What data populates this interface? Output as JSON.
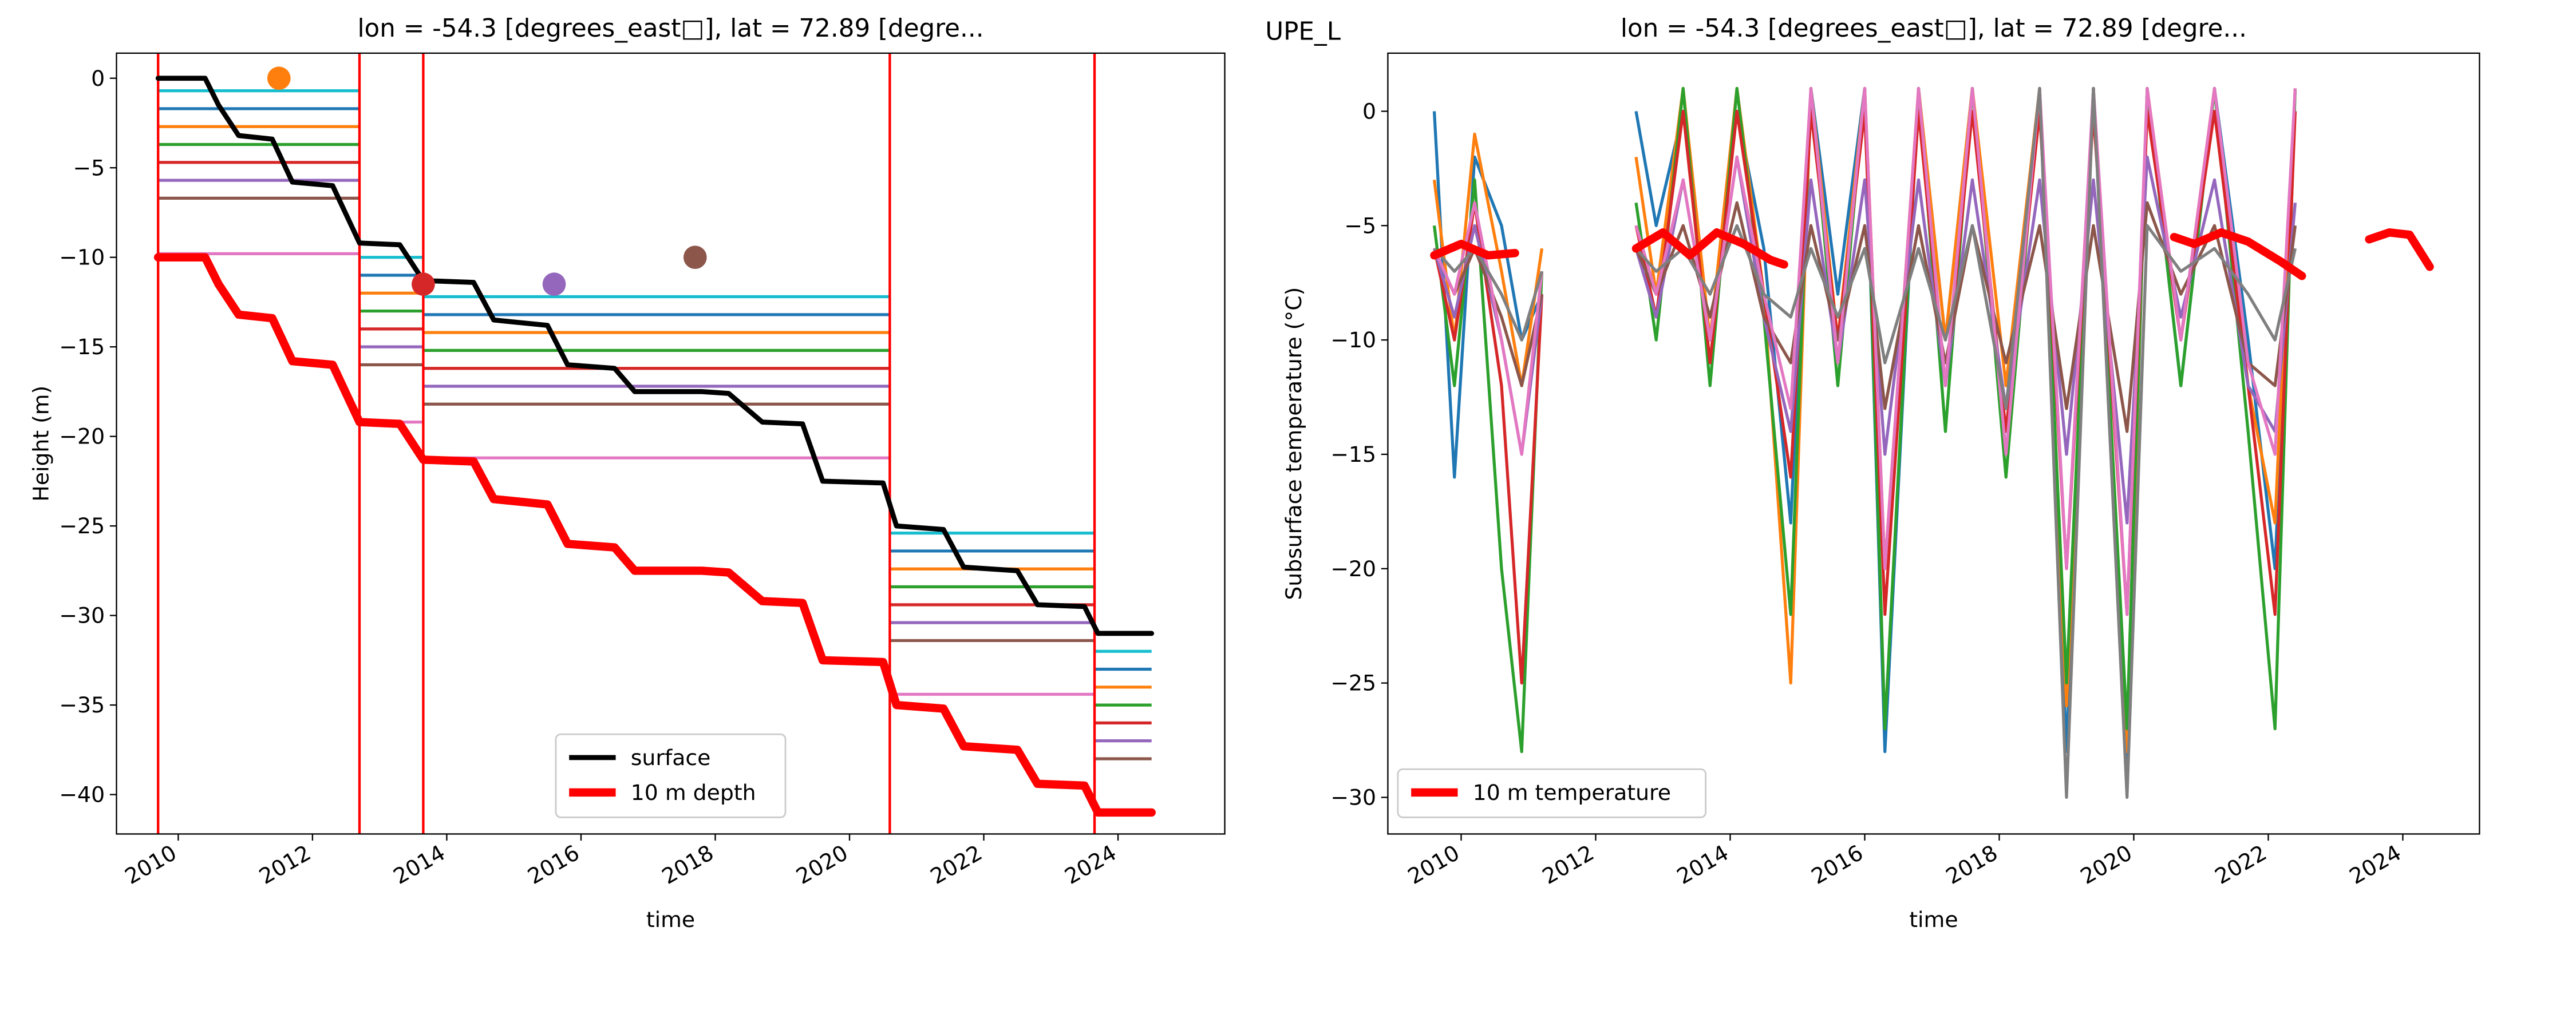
{
  "site": "UPE_L",
  "chart_data": [
    {
      "type": "line",
      "title": "lon = -54.3 [degrees_east□], lat = 72.89 [degre...",
      "x_label": "time",
      "y_label": "Height (m)",
      "xlim": [
        2009.08,
        2025.59
      ],
      "ylim": [
        -42.2,
        1.4
      ],
      "xticks": [
        2010,
        2012,
        2014,
        2016,
        2018,
        2020,
        2022,
        2024
      ],
      "yticks": [
        0,
        {
          "value": -5,
          "label": "−5"
        },
        {
          "value": -10,
          "label": "−10"
        },
        {
          "value": -15,
          "label": "−15"
        },
        {
          "value": -20,
          "label": "−20"
        },
        {
          "value": -25,
          "label": "−25"
        },
        {
          "value": -30,
          "label": "−30"
        },
        {
          "value": -35,
          "label": "−35"
        },
        {
          "value": -40,
          "label": "−40"
        }
      ],
      "legend": "lower center",
      "x": [
        2009.7,
        2010.4,
        2010.6,
        2010.9,
        2011.4,
        2011.7,
        2012.3,
        2012.7,
        2013.3,
        2013.65,
        2014.4,
        2014.7,
        2015.5,
        2015.8,
        2016.5,
        2016.8,
        2017.8,
        2018.2,
        2018.7,
        2019.3,
        2019.6,
        2020.5,
        2020.7,
        2021.4,
        2021.7,
        2022.5,
        2022.8,
        2023.5,
        2023.7,
        2024.5
      ],
      "series": [
        {
          "name": "surface",
          "color": "#000000",
          "width": 3,
          "values": [
            0,
            0,
            -1.5,
            -3.2,
            -3.4,
            -5.8,
            -6,
            -9.2,
            -9.3,
            -11.3,
            -11.4,
            -13.5,
            -13.8,
            -16,
            -16.2,
            -17.5,
            -17.5,
            -17.6,
            -19.2,
            -19.3,
            -22.5,
            -22.6,
            -25,
            -25.2,
            -27.3,
            -27.5,
            -29.4,
            -29.5,
            -31,
            -31
          ]
        },
        {
          "name": "10 m depth",
          "color": "#ff0000",
          "width": 5,
          "values": [
            -10,
            -10,
            -11.5,
            -13.2,
            -13.4,
            -15.8,
            -16,
            -19.2,
            -19.3,
            -21.3,
            -21.4,
            -23.5,
            -23.8,
            -26,
            -26.2,
            -27.5,
            -27.5,
            -27.6,
            -29.2,
            -29.3,
            -32.5,
            -32.6,
            -35,
            -35.2,
            -37.3,
            -37.5,
            -39.4,
            -39.5,
            -41,
            -41
          ]
        }
      ],
      "sensor_x": [
        2009.7,
        2012.7,
        2012.7,
        2012.7,
        2013.65,
        2013.65,
        2013.65,
        2020.6,
        2020.6,
        2020.6,
        2023.65,
        2023.65,
        2023.65,
        2024.5
      ],
      "sensor_lines": [
        {
          "color": "#17becf",
          "values": [
            -0.7,
            -0.7,
            null,
            -10,
            -10,
            null,
            -12.2,
            -12.2,
            null,
            -25.4,
            -25.4,
            null,
            -32,
            -32
          ]
        },
        {
          "color": "#1f77b4",
          "values": [
            -1.7,
            -1.7,
            null,
            -11,
            -11,
            null,
            -13.2,
            -13.2,
            null,
            -26.4,
            -26.4,
            null,
            -33,
            -33
          ]
        },
        {
          "color": "#ff7f0e",
          "values": [
            -2.7,
            -2.7,
            null,
            -12,
            -12,
            null,
            -14.2,
            -14.2,
            null,
            -27.4,
            -27.4,
            null,
            -34,
            -34
          ]
        },
        {
          "color": "#2ca02c",
          "values": [
            -3.7,
            -3.7,
            null,
            -13,
            -13,
            null,
            -15.2,
            -15.2,
            null,
            -28.4,
            -28.4,
            null,
            -35,
            -35
          ]
        },
        {
          "color": "#d62728",
          "values": [
            -4.7,
            -4.7,
            null,
            -14,
            -14,
            null,
            -16.2,
            -16.2,
            null,
            -29.4,
            -29.4,
            null,
            -36,
            -36
          ]
        },
        {
          "color": "#9467bd",
          "values": [
            -5.7,
            -5.7,
            null,
            -15,
            -15,
            null,
            -17.2,
            -17.2,
            null,
            -30.4,
            -30.4,
            null,
            -37,
            -37
          ]
        },
        {
          "color": "#8c564b",
          "values": [
            -6.7,
            -6.7,
            null,
            -16,
            -16,
            null,
            -18.2,
            -18.2,
            null,
            -31.4,
            -31.4,
            null,
            -38,
            -38
          ]
        },
        {
          "color": "#e377c2",
          "values": [
            -9.8,
            -9.8,
            null,
            -19.2,
            -19.2,
            null,
            -21.2,
            -21.2,
            null,
            -34.4,
            -34.4,
            null,
            -41,
            -41
          ]
        }
      ],
      "vlines": {
        "color": "#ff0000",
        "x": [
          2009.7,
          2012.7,
          2013.65,
          2020.6,
          2023.65
        ]
      },
      "markers": {
        "x": [
          2011.5,
          2013.65,
          2015.6,
          2017.7
        ],
        "values": [
          0,
          -11.5,
          -11.5,
          -10
        ],
        "colors": [
          "#ff7f0e",
          "#d62728",
          "#9467bd",
          "#8c564b"
        ]
      }
    },
    {
      "type": "line",
      "title": "lon = -54.3 [degrees_east□], lat = 72.89 [degre...",
      "x_label": "time",
      "y_label": "Subsurface temperature (°C)",
      "xlim": [
        2008.91,
        2025.14
      ],
      "ylim": [
        -31.6,
        2.54
      ],
      "xticks": [
        2010,
        2012,
        2014,
        2016,
        2018,
        2020,
        2022,
        2024
      ],
      "yticks": [
        0,
        {
          "value": -5,
          "label": "−5"
        },
        {
          "value": -10,
          "label": "−10"
        },
        {
          "value": -15,
          "label": "−15"
        },
        {
          "value": -20,
          "label": "−20"
        },
        {
          "value": -25,
          "label": "−25"
        },
        {
          "value": -30,
          "label": "−30"
        }
      ],
      "legend": "lower left",
      "x": [
        2009.6,
        2009.9,
        2010.2,
        2010.6,
        2010.9,
        2011.2,
        2011.9,
        2012.6,
        2012.9,
        2013.3,
        2013.7,
        2014.1,
        2014.5,
        2014.9,
        2015.2,
        2015.6,
        2016.0,
        2016.3,
        2016.8,
        2017.2,
        2017.6,
        2018.1,
        2018.6,
        2019.0,
        2019.4,
        2019.9,
        2020.2,
        2020.7,
        2021.2,
        2021.7,
        2022.1,
        2022.4
      ],
      "sensor_lines": [
        {
          "color": "#1f77b4",
          "values": [
            0,
            -16,
            -2,
            -5,
            -10,
            -8,
            null,
            0,
            -5,
            0,
            -10,
            0,
            -6,
            -18,
            1,
            -8,
            1,
            -28,
            1,
            -10,
            1,
            -15,
            1,
            -28,
            1,
            -29,
            1,
            -12,
            1,
            -10,
            -20,
            1
          ]
        },
        {
          "color": "#ff7f0e",
          "values": [
            -3,
            -10,
            -1,
            -7,
            -12,
            -6,
            null,
            -2,
            -8,
            1,
            -10,
            1,
            -8,
            -25,
            1,
            -10,
            1,
            -20,
            1,
            -10,
            1,
            -12,
            1,
            -26,
            1,
            -28,
            1,
            -10,
            1,
            -12,
            -18,
            1
          ]
        },
        {
          "color": "#2ca02c",
          "values": [
            -5,
            -12,
            -3,
            -20,
            -28,
            -7,
            null,
            -4,
            -10,
            1,
            -12,
            1,
            -9,
            -22,
            1,
            -12,
            1,
            -27,
            1,
            -14,
            1,
            -16,
            1,
            -25,
            1,
            -27,
            1,
            -12,
            1,
            -14,
            -27,
            1
          ]
        },
        {
          "color": "#d62728",
          "values": [
            -6,
            -10,
            -4,
            -12,
            -25,
            -8,
            null,
            -5,
            -9,
            0,
            -11,
            0,
            -8,
            -16,
            0,
            -10,
            0,
            -22,
            0,
            -12,
            0,
            -14,
            0,
            -20,
            0,
            -22,
            0,
            -10,
            0,
            -12,
            -22,
            0
          ]
        },
        {
          "color": "#9467bd",
          "values": [
            -6,
            -9,
            -5,
            -10,
            -15,
            -8,
            null,
            -6,
            -9,
            -3,
            -10,
            -2,
            -9,
            -14,
            -3,
            -11,
            -3,
            -15,
            -3,
            -12,
            -3,
            -13,
            -3,
            -15,
            -3,
            -18,
            -2,
            -9,
            -3,
            -12,
            -14,
            -4
          ]
        },
        {
          "color": "#8c564b",
          "values": [
            -6,
            -8,
            -6,
            -9,
            -12,
            -8,
            null,
            -6,
            -8,
            -5,
            -9,
            -4,
            -9,
            -11,
            -5,
            -10,
            -5,
            -13,
            -5,
            -11,
            -5,
            -11,
            -5,
            -13,
            -5,
            -14,
            -4,
            -8,
            -5,
            -11,
            -12,
            -5
          ]
        },
        {
          "color": "#e377c2",
          "values": [
            -6,
            -8,
            -4,
            -10,
            -15,
            -7,
            null,
            -5,
            -8,
            -3,
            -10,
            -2,
            -8,
            -13,
            1,
            -11,
            1,
            -20,
            1,
            -12,
            1,
            -15,
            1,
            -20,
            1,
            -22,
            1,
            -10,
            1,
            -11,
            -15,
            1
          ]
        },
        {
          "color": "#7f7f7f",
          "values": [
            -6,
            -7,
            -6,
            -8,
            -10,
            -7,
            null,
            -6,
            -7,
            -6,
            -8,
            -5,
            -8,
            -9,
            -6,
            -9,
            -6,
            -11,
            -6,
            -10,
            -5,
            -13,
            1,
            -30,
            1,
            -30,
            -5,
            -7,
            -6,
            -8,
            -10,
            -6
          ]
        }
      ],
      "series": [
        {
          "name": "10 m temperature",
          "color": "#ff0000",
          "width": 5,
          "x": [
            2009.6,
            2010.0,
            2010.4,
            2010.8,
            2011.5,
            2012.6,
            2013.0,
            2013.4,
            2013.8,
            2014.2,
            2014.6,
            2014.8,
            2017,
            2020.6,
            2020.9,
            2021.3,
            2021.7,
            2022.2,
            2022.5,
            2023,
            2023.5,
            2023.8,
            2024.1,
            2024.4
          ],
          "values": [
            -6.3,
            -5.8,
            -6.3,
            -6.2,
            null,
            -6,
            -5.3,
            -6.3,
            -5.3,
            -5.8,
            -6.5,
            -6.7,
            null,
            -5.5,
            -5.8,
            -5.3,
            -5.7,
            -6.6,
            -7.2,
            null,
            -5.6,
            -5.3,
            -5.4,
            -6.8
          ]
        }
      ]
    }
  ]
}
